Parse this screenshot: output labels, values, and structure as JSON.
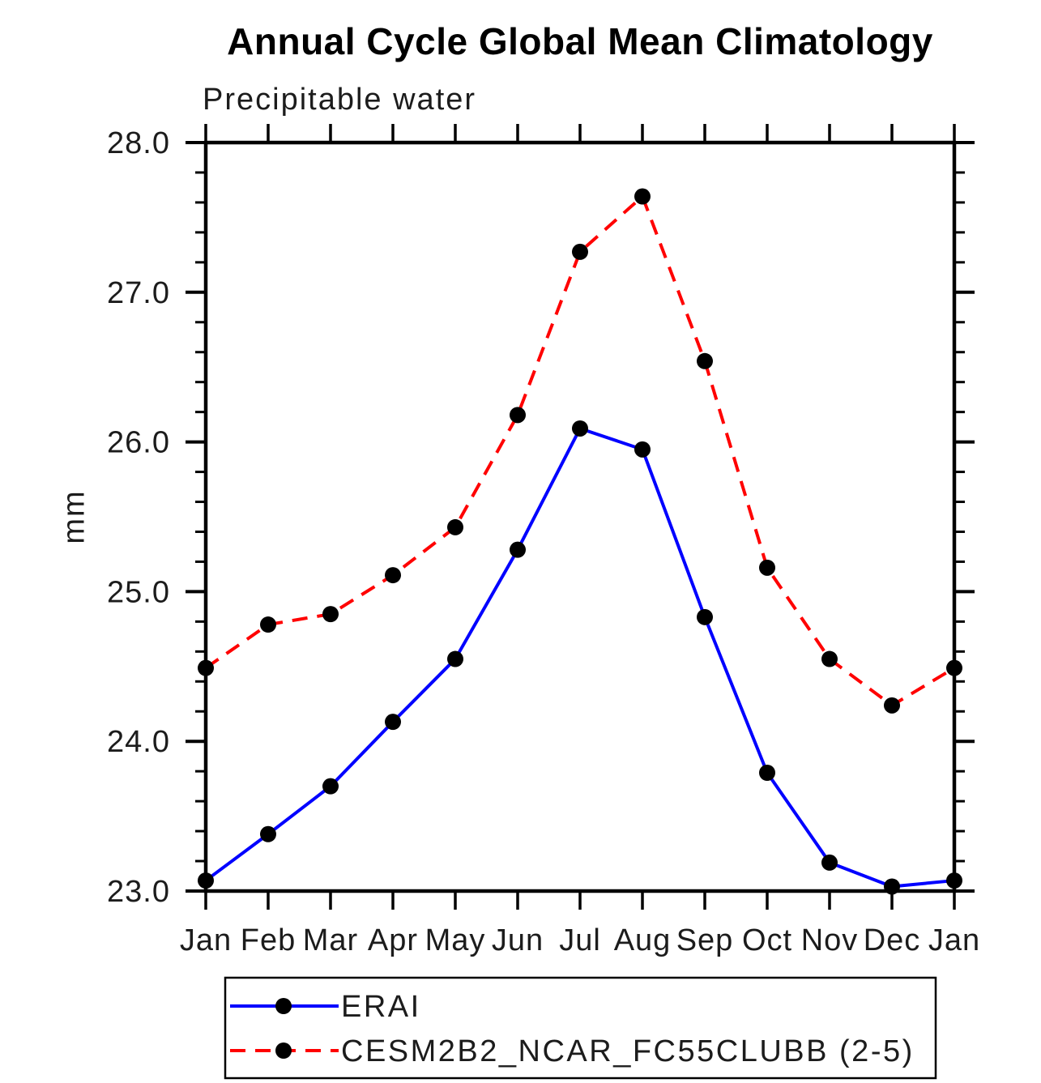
{
  "chart_data": {
    "type": "line",
    "title": "Annual Cycle Global Mean Climatology",
    "subtitle": "Precipitable water",
    "xlabel": "",
    "ylabel": "mm",
    "categories": [
      "Jan",
      "Feb",
      "Mar",
      "Apr",
      "May",
      "Jun",
      "Jul",
      "Aug",
      "Sep",
      "Oct",
      "Nov",
      "Dec",
      "Jan"
    ],
    "ylim": [
      23.0,
      28.0
    ],
    "ytick_labels": [
      "23.0",
      "24.0",
      "25.0",
      "26.0",
      "27.0",
      "28.0"
    ],
    "minor_tick_step": 0.2,
    "grid": false,
    "legend_position": "bottom",
    "marker_color": "#000000",
    "series": [
      {
        "name": "ERAI",
        "color": "#0000ff",
        "style": "solid",
        "marker": "filled-circle",
        "values": [
          23.07,
          23.38,
          23.7,
          24.13,
          24.55,
          25.28,
          26.09,
          25.95,
          24.83,
          23.79,
          23.19,
          23.03,
          23.07
        ]
      },
      {
        "name": "CESM2B2_NCAR_FC55CLUBB (2-5)",
        "color": "#ff0000",
        "style": "dashed",
        "marker": "filled-circle",
        "values": [
          24.49,
          24.78,
          24.85,
          25.11,
          25.43,
          26.18,
          27.27,
          27.64,
          26.54,
          25.16,
          24.55,
          24.24,
          24.49
        ]
      }
    ]
  }
}
